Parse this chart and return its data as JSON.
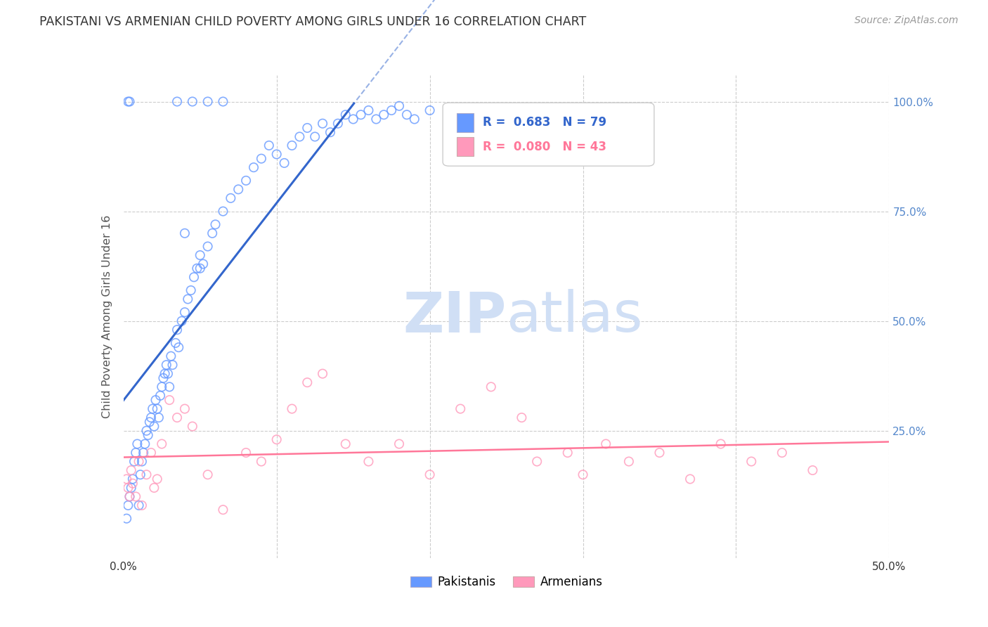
{
  "title": "PAKISTANI VS ARMENIAN CHILD POVERTY AMONG GIRLS UNDER 16 CORRELATION CHART",
  "source": "Source: ZipAtlas.com",
  "ylabel": "Child Poverty Among Girls Under 16",
  "xlim": [
    0.0,
    0.5
  ],
  "ylim": [
    -0.04,
    1.06
  ],
  "blue_color": "#6699FF",
  "pink_color": "#FF99BB",
  "line_blue": "#3366CC",
  "line_pink": "#FF7799",
  "grid_color": "#cccccc",
  "tick_color": "#5588CC",
  "watermark_color": "#d0dff5",
  "pakistani_x": [
    0.002,
    0.003,
    0.004,
    0.005,
    0.006,
    0.007,
    0.008,
    0.009,
    0.01,
    0.011,
    0.012,
    0.013,
    0.014,
    0.015,
    0.016,
    0.017,
    0.018,
    0.019,
    0.02,
    0.021,
    0.022,
    0.023,
    0.024,
    0.025,
    0.026,
    0.027,
    0.028,
    0.029,
    0.03,
    0.031,
    0.032,
    0.034,
    0.035,
    0.036,
    0.038,
    0.04,
    0.042,
    0.044,
    0.046,
    0.048,
    0.05,
    0.052,
    0.055,
    0.058,
    0.06,
    0.065,
    0.07,
    0.075,
    0.08,
    0.085,
    0.09,
    0.095,
    0.1,
    0.105,
    0.11,
    0.115,
    0.12,
    0.125,
    0.13,
    0.135,
    0.14,
    0.145,
    0.15,
    0.155,
    0.16,
    0.165,
    0.17,
    0.175,
    0.18,
    0.185,
    0.19,
    0.2,
    0.003,
    0.004,
    0.035,
    0.045,
    0.055,
    0.065,
    0.04,
    0.05
  ],
  "pakistani_y": [
    0.05,
    0.08,
    0.1,
    0.12,
    0.14,
    0.18,
    0.2,
    0.22,
    0.08,
    0.15,
    0.18,
    0.2,
    0.22,
    0.25,
    0.24,
    0.27,
    0.28,
    0.3,
    0.26,
    0.32,
    0.3,
    0.28,
    0.33,
    0.35,
    0.37,
    0.38,
    0.4,
    0.38,
    0.35,
    0.42,
    0.4,
    0.45,
    0.48,
    0.44,
    0.5,
    0.52,
    0.55,
    0.57,
    0.6,
    0.62,
    0.65,
    0.63,
    0.67,
    0.7,
    0.72,
    0.75,
    0.78,
    0.8,
    0.82,
    0.85,
    0.87,
    0.9,
    0.88,
    0.86,
    0.9,
    0.92,
    0.94,
    0.92,
    0.95,
    0.93,
    0.95,
    0.97,
    0.96,
    0.97,
    0.98,
    0.96,
    0.97,
    0.98,
    0.99,
    0.97,
    0.96,
    0.98,
    1.0,
    1.0,
    1.0,
    1.0,
    1.0,
    1.0,
    0.7,
    0.62
  ],
  "armenian_x": [
    0.002,
    0.003,
    0.004,
    0.005,
    0.006,
    0.008,
    0.01,
    0.012,
    0.015,
    0.018,
    0.02,
    0.022,
    0.025,
    0.03,
    0.035,
    0.04,
    0.045,
    0.055,
    0.065,
    0.08,
    0.09,
    0.1,
    0.11,
    0.12,
    0.13,
    0.145,
    0.16,
    0.18,
    0.2,
    0.22,
    0.24,
    0.26,
    0.27,
    0.29,
    0.3,
    0.315,
    0.33,
    0.35,
    0.37,
    0.39,
    0.41,
    0.43,
    0.45
  ],
  "armenian_y": [
    0.14,
    0.12,
    0.1,
    0.16,
    0.13,
    0.1,
    0.18,
    0.08,
    0.15,
    0.2,
    0.12,
    0.14,
    0.22,
    0.32,
    0.28,
    0.3,
    0.26,
    0.15,
    0.07,
    0.2,
    0.18,
    0.23,
    0.3,
    0.36,
    0.38,
    0.22,
    0.18,
    0.22,
    0.15,
    0.3,
    0.35,
    0.28,
    0.18,
    0.2,
    0.15,
    0.22,
    0.18,
    0.2,
    0.14,
    0.22,
    0.18,
    0.2,
    0.16
  ]
}
